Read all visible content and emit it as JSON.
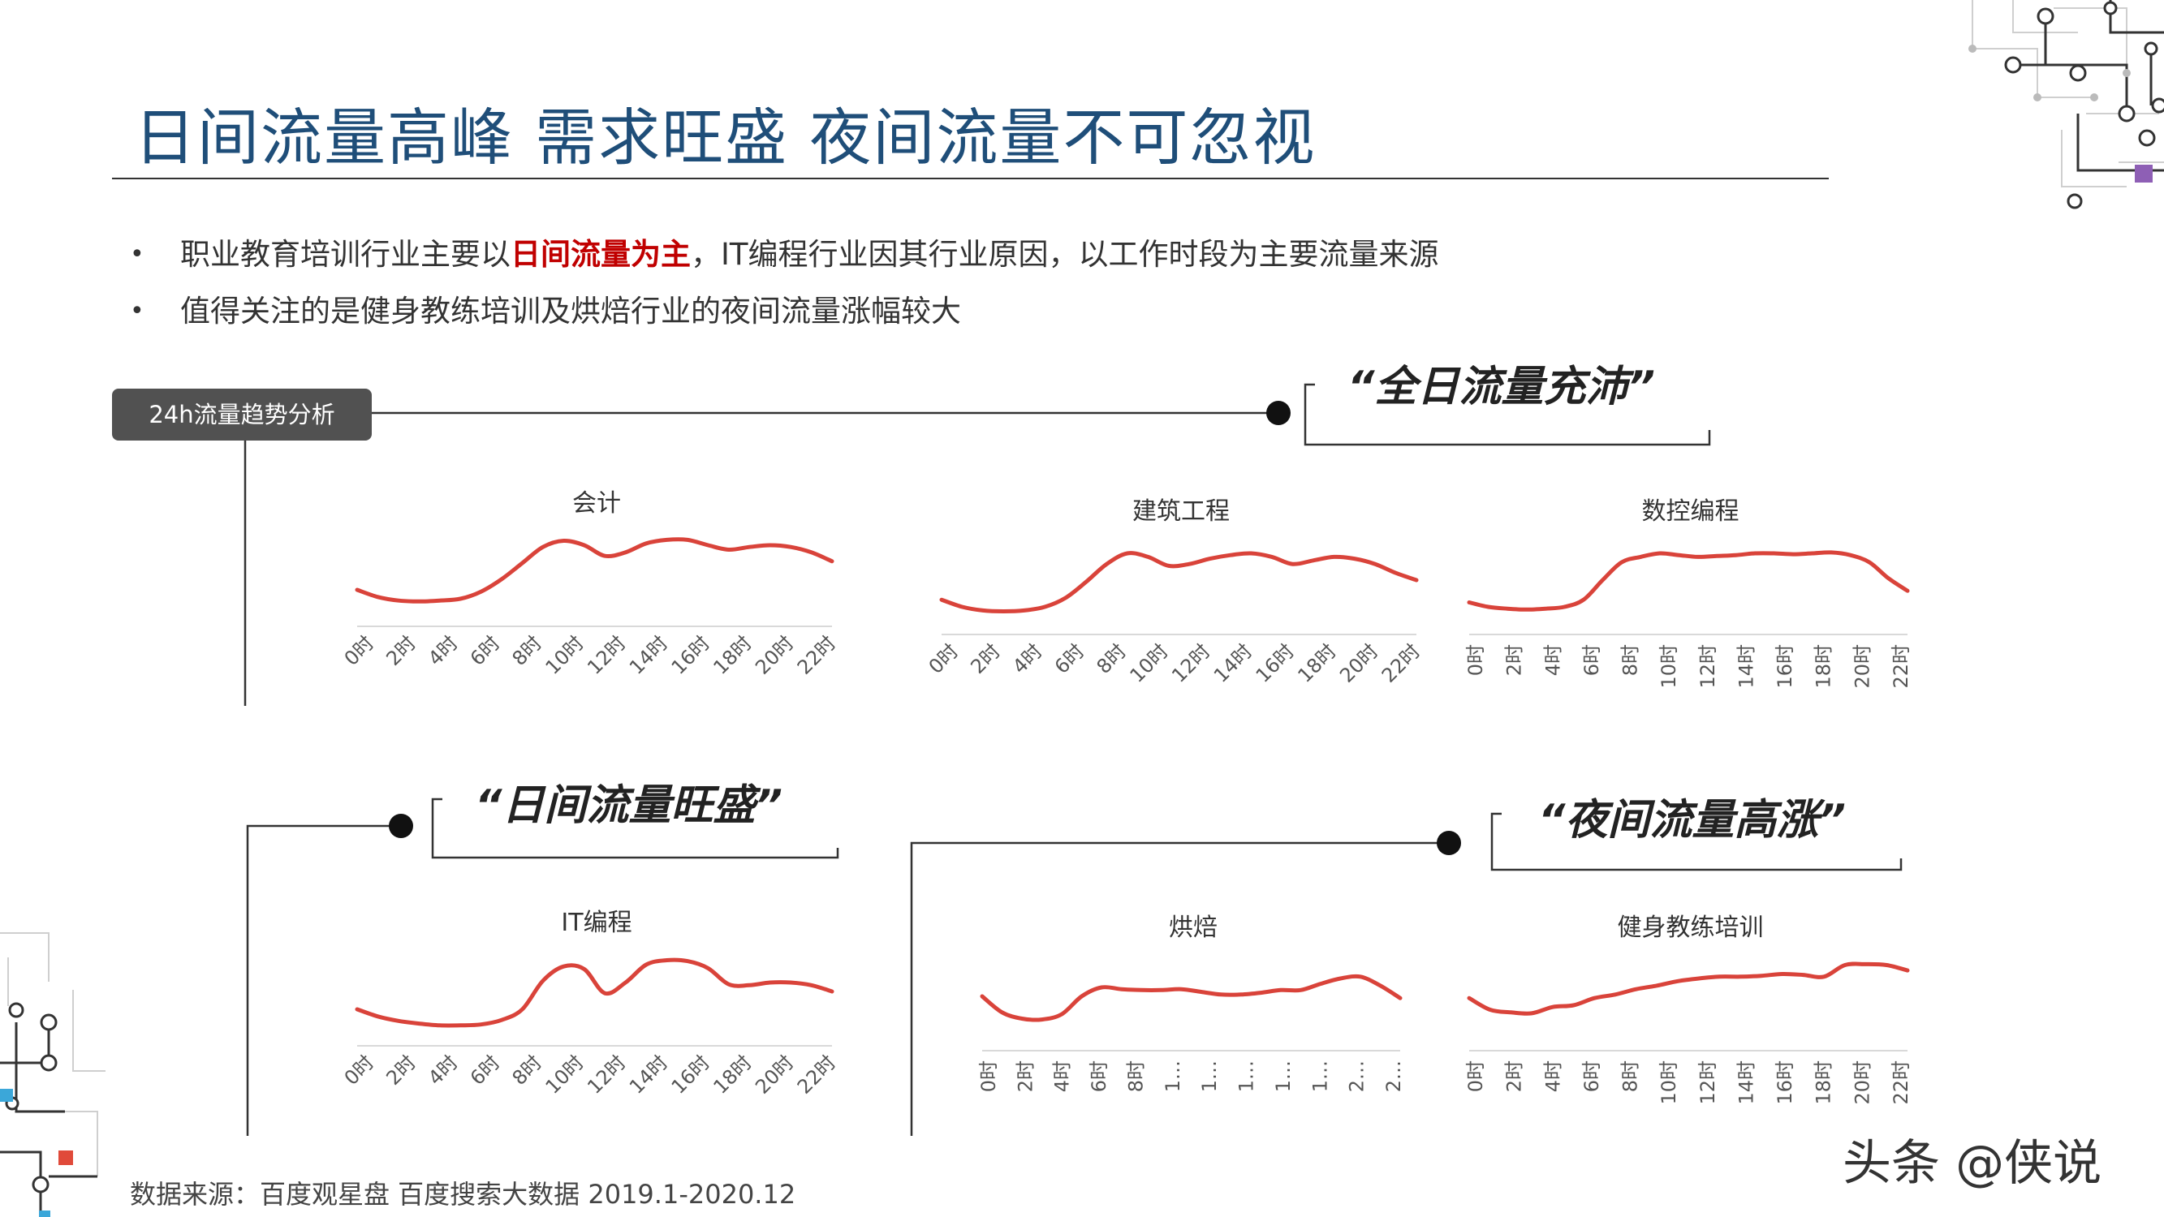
{
  "title": "日间流量高峰 需求旺盛 夜间流量不可忽视",
  "bullets": {
    "b1_prefix": "职业教育培训行业主要以",
    "b1_highlight": "日间流量为主",
    "b1_suffix": "，IT编程行业因其行业原因，以工作时段为主要流量来源",
    "b2": "值得关注的是健身教练培训及烘焙行业的夜间流量涨幅较大",
    "marker": "•"
  },
  "tag": "24h流量趋势分析",
  "quotes": {
    "q1": "“全日流量充沛”",
    "q2": "“日间流量旺盛”",
    "q3": "“夜间流量高涨”"
  },
  "colors": {
    "line": "#d9433a",
    "title": "#1f4e79",
    "highlight": "#c00000",
    "tag_bg": "#515151"
  },
  "chart_data": [
    {
      "type": "line",
      "title": "会计",
      "tick_style": "diagonal",
      "x_ticks": [
        "0时",
        "2时",
        "4时",
        "6时",
        "8时",
        "10时",
        "12时",
        "14时",
        "16时",
        "18时",
        "20时",
        "22时"
      ],
      "values": [
        30,
        22,
        18,
        17,
        18,
        20,
        28,
        42,
        60,
        78,
        85,
        80,
        68,
        72,
        82,
        86,
        86,
        80,
        75,
        78,
        80,
        78,
        72,
        62
      ]
    },
    {
      "type": "line",
      "title": "建筑工程",
      "tick_style": "diagonal",
      "x_ticks": [
        "0时",
        "2时",
        "4时",
        "6时",
        "8时",
        "10时",
        "12时",
        "14时",
        "16时",
        "18时",
        "20时",
        "22时"
      ],
      "values": [
        28,
        20,
        16,
        15,
        16,
        20,
        30,
        48,
        68,
        80,
        76,
        66,
        68,
        74,
        78,
        80,
        76,
        68,
        72,
        76,
        74,
        68,
        58,
        50
      ]
    },
    {
      "type": "line",
      "title": "数控编程",
      "tick_style": "vertical",
      "x_ticks": [
        "0时",
        "2时",
        "4时",
        "6时",
        "8时",
        "10时",
        "12时",
        "14时",
        "16时",
        "18时",
        "20时",
        "22时"
      ],
      "values": [
        25,
        20,
        18,
        17,
        18,
        20,
        28,
        50,
        70,
        76,
        80,
        78,
        76,
        77,
        78,
        80,
        80,
        79,
        80,
        81,
        78,
        70,
        52,
        38
      ]
    },
    {
      "type": "line",
      "title": "IT编程",
      "tick_style": "diagonal",
      "x_ticks": [
        "0时",
        "2时",
        "4时",
        "6时",
        "8时",
        "10时",
        "12时",
        "14时",
        "16时",
        "18时",
        "20时",
        "22时"
      ],
      "values": [
        30,
        22,
        17,
        14,
        12,
        12,
        13,
        18,
        30,
        62,
        78,
        75,
        48,
        60,
        80,
        85,
        84,
        76,
        58,
        57,
        60,
        60,
        57,
        50
      ]
    },
    {
      "type": "line",
      "title": "烘焙",
      "tick_style": "vertical",
      "x_ticks": [
        "0时",
        "2时",
        "4时",
        "6时",
        "8时",
        "1…",
        "1…",
        "1…",
        "1…",
        "1…",
        "2…",
        "2…"
      ],
      "values": [
        50,
        32,
        25,
        24,
        30,
        50,
        60,
        58,
        57,
        57,
        58,
        55,
        52,
        52,
        54,
        57,
        57,
        64,
        70,
        72,
        62,
        48
      ]
    },
    {
      "type": "line",
      "title": "健身教练培训",
      "tick_style": "vertical",
      "x_ticks": [
        "0时",
        "2时",
        "4时",
        "6时",
        "8时",
        "10时",
        "12时",
        "14时",
        "16时",
        "18时",
        "20时",
        "22时"
      ],
      "values": [
        48,
        35,
        32,
        31,
        38,
        40,
        48,
        52,
        58,
        62,
        67,
        70,
        72,
        72,
        73,
        75,
        74,
        72,
        85,
        86,
        85,
        79
      ]
    }
  ],
  "source": "数据来源：百度观星盘 百度搜索大数据 2019.1-2020.12",
  "watermark": "头条 @侠说"
}
